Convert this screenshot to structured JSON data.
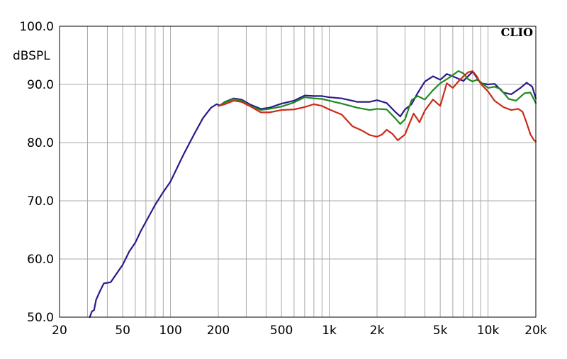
{
  "chart_data": {
    "type": "line",
    "brand_label": "CLIO",
    "ylabel": "dBSPL",
    "xscale": "log",
    "xlim": [
      20,
      20000
    ],
    "ylim": [
      50,
      100
    ],
    "grid": true,
    "x_ticks": [
      20,
      50,
      100,
      200,
      500,
      1000,
      2000,
      5000,
      10000,
      20000
    ],
    "x_tick_labels": [
      "20",
      "50",
      "100",
      "200",
      "500",
      "1k",
      "2k",
      "5k",
      "10k",
      "20k"
    ],
    "y_ticks": [
      50,
      60,
      70,
      80,
      90,
      100
    ],
    "y_tick_labels": [
      "50.0",
      "60.0",
      "70.0",
      "80.0",
      "90.0",
      "100.0"
    ],
    "series": [
      {
        "color": "#2a1a8a",
        "points": [
          [
            31,
            50
          ],
          [
            32,
            51
          ],
          [
            33,
            51.2
          ],
          [
            34,
            53
          ],
          [
            36,
            54.5
          ],
          [
            38,
            55.8
          ],
          [
            42,
            56
          ],
          [
            45,
            57.2
          ],
          [
            50,
            59
          ],
          [
            55,
            61.3
          ],
          [
            60,
            62.8
          ],
          [
            65,
            64.8
          ],
          [
            70,
            66.4
          ],
          [
            80,
            69.3
          ],
          [
            90,
            71.5
          ],
          [
            100,
            73.3
          ],
          [
            120,
            77.8
          ],
          [
            140,
            81.3
          ],
          [
            160,
            84.2
          ],
          [
            180,
            86
          ],
          [
            195,
            86.6
          ],
          [
            205,
            86.4
          ],
          [
            220,
            87
          ],
          [
            250,
            87.6
          ],
          [
            280,
            87.4
          ],
          [
            320,
            86.5
          ],
          [
            370,
            85.8
          ],
          [
            420,
            86
          ],
          [
            500,
            86.7
          ],
          [
            600,
            87.2
          ],
          [
            700,
            88.1
          ],
          [
            800,
            88
          ],
          [
            900,
            88
          ],
          [
            1000,
            87.8
          ],
          [
            1200,
            87.6
          ],
          [
            1500,
            87
          ],
          [
            1800,
            87
          ],
          [
            2000,
            87.3
          ],
          [
            2300,
            86.8
          ],
          [
            2600,
            85.3
          ],
          [
            2800,
            84.5
          ],
          [
            3000,
            85.7
          ],
          [
            3300,
            86.6
          ],
          [
            3600,
            88.5
          ],
          [
            4000,
            90.5
          ],
          [
            4500,
            91.4
          ],
          [
            5000,
            90.8
          ],
          [
            5500,
            91.8
          ],
          [
            6000,
            91.4
          ],
          [
            7000,
            90.6
          ],
          [
            8000,
            92.2
          ],
          [
            9000,
            90.2
          ],
          [
            10000,
            90
          ],
          [
            11000,
            90.1
          ],
          [
            12500,
            88.6
          ],
          [
            14000,
            88.3
          ],
          [
            16000,
            89.4
          ],
          [
            17500,
            90.3
          ],
          [
            19000,
            89.6
          ],
          [
            20000,
            87.6
          ]
        ]
      },
      {
        "color": "#1f8a1f",
        "points": [
          [
            200,
            86.3
          ],
          [
            220,
            86.9
          ],
          [
            250,
            87.5
          ],
          [
            280,
            87.2
          ],
          [
            320,
            86.3
          ],
          [
            370,
            85.6
          ],
          [
            420,
            85.8
          ],
          [
            500,
            86.2
          ],
          [
            600,
            86.9
          ],
          [
            700,
            87.8
          ],
          [
            800,
            87.6
          ],
          [
            900,
            87.5
          ],
          [
            1000,
            87.2
          ],
          [
            1200,
            86.7
          ],
          [
            1500,
            86
          ],
          [
            1800,
            85.6
          ],
          [
            2000,
            85.8
          ],
          [
            2300,
            85.7
          ],
          [
            2600,
            84.2
          ],
          [
            2800,
            83.2
          ],
          [
            3000,
            84
          ],
          [
            3300,
            87.3
          ],
          [
            3600,
            88
          ],
          [
            4000,
            87.4
          ],
          [
            4500,
            89
          ],
          [
            5000,
            90.2
          ],
          [
            5500,
            90.9
          ],
          [
            6000,
            91.6
          ],
          [
            6500,
            92.3
          ],
          [
            7000,
            91.9
          ],
          [
            7500,
            90.9
          ],
          [
            8000,
            90.5
          ],
          [
            8500,
            90.8
          ],
          [
            9000,
            90.4
          ],
          [
            10000,
            89.4
          ],
          [
            11000,
            89.6
          ],
          [
            12000,
            89.2
          ],
          [
            13500,
            87.5
          ],
          [
            15000,
            87.2
          ],
          [
            17000,
            88.5
          ],
          [
            18500,
            88.6
          ],
          [
            20000,
            86.8
          ]
        ]
      },
      {
        "color": "#cc2a1a",
        "points": [
          [
            200,
            86.3
          ],
          [
            220,
            86.6
          ],
          [
            250,
            87.2
          ],
          [
            280,
            87
          ],
          [
            320,
            86.2
          ],
          [
            370,
            85.2
          ],
          [
            420,
            85.2
          ],
          [
            500,
            85.6
          ],
          [
            600,
            85.7
          ],
          [
            700,
            86.1
          ],
          [
            800,
            86.6
          ],
          [
            900,
            86.3
          ],
          [
            1000,
            85.7
          ],
          [
            1200,
            84.8
          ],
          [
            1400,
            82.8
          ],
          [
            1600,
            82.1
          ],
          [
            1800,
            81.3
          ],
          [
            2000,
            81
          ],
          [
            2150,
            81.4
          ],
          [
            2300,
            82.2
          ],
          [
            2500,
            81.5
          ],
          [
            2700,
            80.4
          ],
          [
            3000,
            81.4
          ],
          [
            3200,
            83.3
          ],
          [
            3400,
            85
          ],
          [
            3700,
            83.5
          ],
          [
            4000,
            85.5
          ],
          [
            4500,
            87.4
          ],
          [
            5000,
            86.3
          ],
          [
            5500,
            90.2
          ],
          [
            6000,
            89.4
          ],
          [
            6500,
            90.5
          ],
          [
            7000,
            91.4
          ],
          [
            7500,
            92.1
          ],
          [
            8000,
            92.3
          ],
          [
            8500,
            91.4
          ],
          [
            9000,
            90.1
          ],
          [
            10000,
            88.8
          ],
          [
            11000,
            87.2
          ],
          [
            12500,
            86.1
          ],
          [
            14000,
            85.6
          ],
          [
            15500,
            85.8
          ],
          [
            16500,
            85.3
          ],
          [
            17500,
            83.4
          ],
          [
            18500,
            81.4
          ],
          [
            19500,
            80.4
          ],
          [
            20000,
            80.2
          ]
        ]
      }
    ]
  }
}
